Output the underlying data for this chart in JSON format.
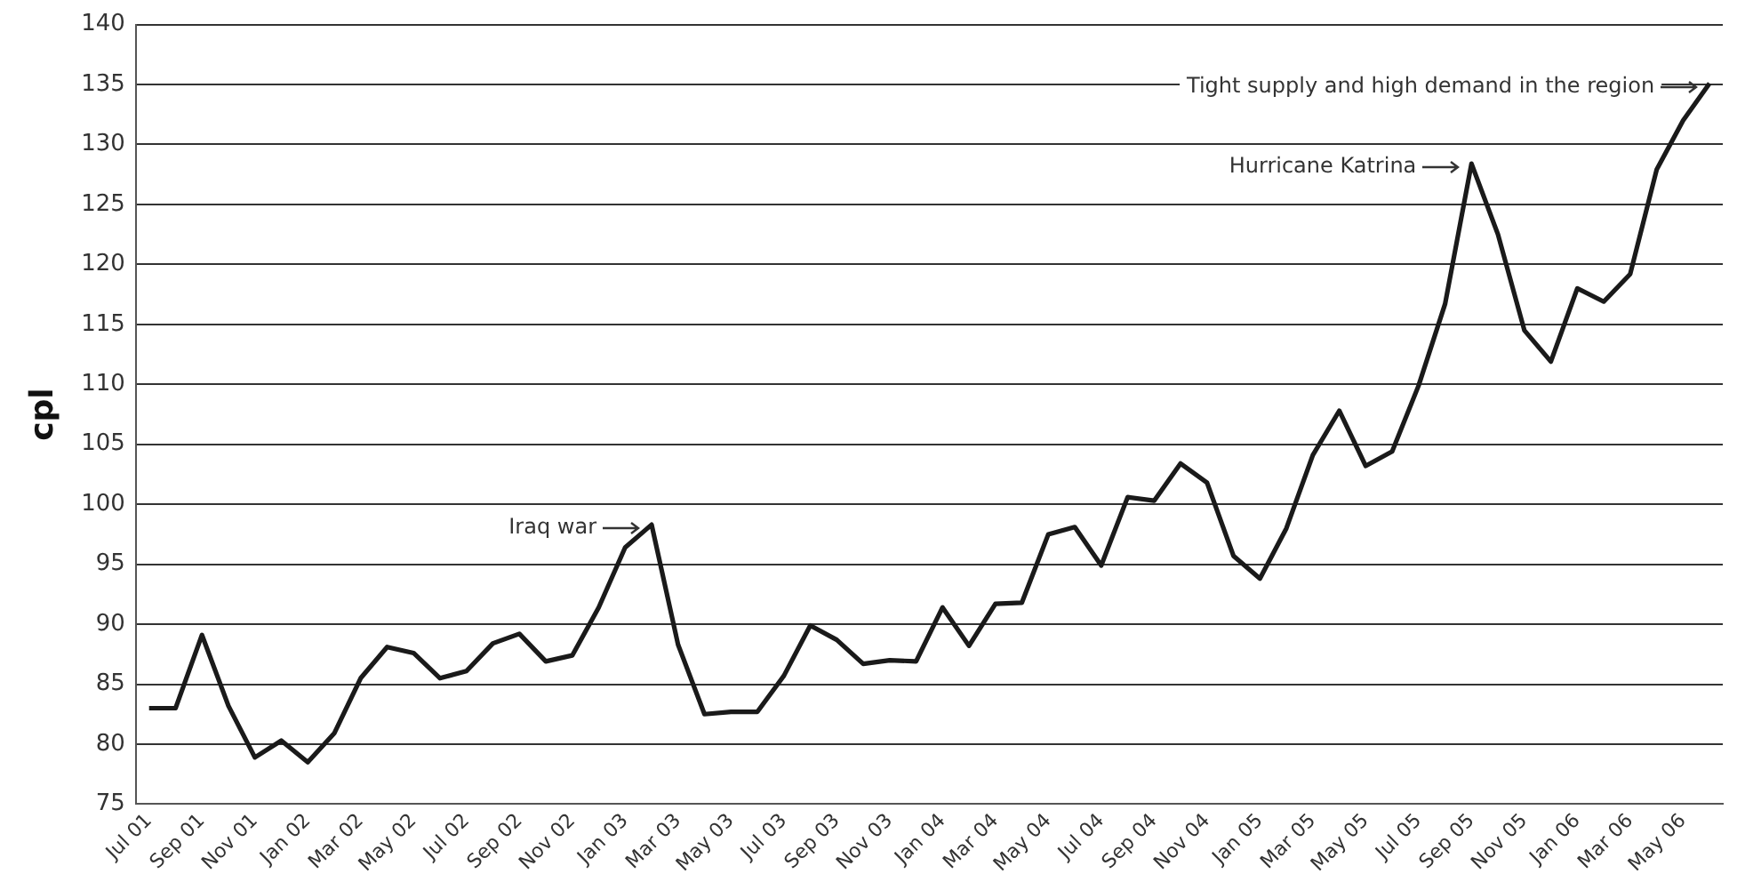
{
  "chart_data": {
    "type": "line",
    "ylabel": "cpl",
    "categories": [
      "Jul 01",
      null,
      "Sep 01",
      null,
      "Nov 01",
      null,
      "Jan 02",
      null,
      "Mar 02",
      null,
      "May 02",
      null,
      "Jul 02",
      null,
      "Sep 02",
      null,
      "Nov 02",
      null,
      "Jan 03",
      null,
      "Mar 03",
      null,
      "May 03",
      null,
      "Jul 03",
      null,
      "Sep 03",
      null,
      "Nov 03",
      null,
      "Jan 04",
      null,
      "Mar 04",
      null,
      "May 04",
      null,
      "Jul 04",
      null,
      "Sep 04",
      null,
      "Nov 04",
      null,
      "Jan 05",
      null,
      "Mar 05",
      null,
      "May 05",
      null,
      "Jul 05",
      null,
      "Sep 05",
      null,
      "Nov 05",
      null,
      "Jan 06",
      null,
      "Mar 06",
      null,
      "May 06",
      null
    ],
    "series": [
      {
        "color": "#1a1a1a",
        "values": [
          83.0,
          83.0,
          89.1,
          83.2,
          78.9,
          80.3,
          78.5,
          80.9,
          85.5,
          88.1,
          87.6,
          85.5,
          86.1,
          88.4,
          89.2,
          86.9,
          87.4,
          91.4,
          96.4,
          98.3,
          88.3,
          82.5,
          82.7,
          82.7,
          85.7,
          89.9,
          88.7,
          86.7,
          87.0,
          86.9,
          91.4,
          88.2,
          91.7,
          91.8,
          97.5,
          98.1,
          94.9,
          100.6,
          100.3,
          103.4,
          101.8,
          95.7,
          93.8,
          98.0,
          104.1,
          107.8,
          103.2,
          104.4,
          109.9,
          116.7,
          128.4,
          122.5,
          114.5,
          111.9,
          118.0,
          116.9,
          119.2,
          127.9,
          132.0,
          135.1
        ]
      }
    ],
    "ylim": [
      75,
      140
    ],
    "yticks": [
      75,
      80,
      85,
      90,
      95,
      100,
      105,
      110,
      115,
      120,
      125,
      130,
      135,
      140
    ],
    "grid": "y",
    "legend": false,
    "marker": "none",
    "line_style": "solid",
    "annotations": [
      "Iraq war",
      "Hurricane Katrina",
      "Tight supply and high demand in the region"
    ]
  }
}
